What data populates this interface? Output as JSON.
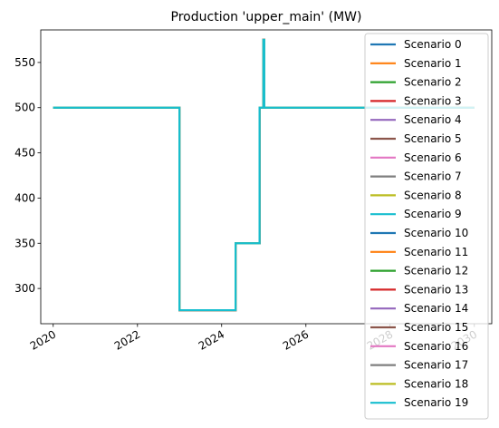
{
  "chart_data": {
    "type": "line",
    "title": "Production 'upper_main' (MW)",
    "xlabel": "",
    "ylabel": "",
    "x_axis_type": "date",
    "xlim": [
      "2019-09-15",
      "2030-06-01"
    ],
    "ylim": [
      261,
      586
    ],
    "x_ticks": [
      {
        "value": "2020-01-01",
        "label": "2020"
      },
      {
        "value": "2022-01-01",
        "label": "2022"
      },
      {
        "value": "2024-01-01",
        "label": "2024"
      },
      {
        "value": "2026-01-01",
        "label": "2026"
      },
      {
        "value": "2028-01-01",
        "label": "2028"
      },
      {
        "value": "2030-01-01",
        "label": "2030"
      }
    ],
    "y_ticks": [
      300,
      350,
      400,
      450,
      500,
      550
    ],
    "grid": false,
    "legend_position": "right",
    "step": "post",
    "colors": [
      "#1f77b4",
      "#ff7f0e",
      "#2ca02c",
      "#d62728",
      "#9467bd",
      "#8c564b",
      "#e377c2",
      "#7f7f7f",
      "#bcbd22",
      "#17becf"
    ],
    "shared_x": [
      "2019-12-31",
      "2022-12-31",
      "2024-05-01",
      "2024-11-25",
      "2024-12-28",
      "2025-01-05",
      "2030-01-01"
    ],
    "series": [
      {
        "name": "Scenario 0",
        "values": [
          500,
          276,
          350,
          500,
          575,
          500,
          500
        ]
      },
      {
        "name": "Scenario 1",
        "values": [
          500,
          276,
          350,
          500,
          575,
          500,
          500
        ]
      },
      {
        "name": "Scenario 2",
        "values": [
          500,
          276,
          350,
          500,
          575,
          500,
          500
        ]
      },
      {
        "name": "Scenario 3",
        "values": [
          500,
          276,
          350,
          500,
          575,
          500,
          500
        ]
      },
      {
        "name": "Scenario 4",
        "values": [
          500,
          276,
          350,
          500,
          575,
          500,
          500
        ]
      },
      {
        "name": "Scenario 5",
        "values": [
          500,
          276,
          350,
          500,
          575,
          500,
          500
        ]
      },
      {
        "name": "Scenario 6",
        "values": [
          500,
          276,
          350,
          500,
          575,
          500,
          500
        ]
      },
      {
        "name": "Scenario 7",
        "values": [
          500,
          276,
          350,
          500,
          575,
          500,
          500
        ]
      },
      {
        "name": "Scenario 8",
        "values": [
          500,
          276,
          350,
          500,
          575,
          500,
          500
        ]
      },
      {
        "name": "Scenario 9",
        "values": [
          500,
          276,
          350,
          500,
          575,
          500,
          500
        ]
      },
      {
        "name": "Scenario 10",
        "values": [
          500,
          276,
          350,
          500,
          575,
          500,
          500
        ]
      },
      {
        "name": "Scenario 11",
        "values": [
          500,
          276,
          350,
          500,
          575,
          500,
          500
        ]
      },
      {
        "name": "Scenario 12",
        "values": [
          500,
          276,
          350,
          500,
          575,
          500,
          500
        ]
      },
      {
        "name": "Scenario 13",
        "values": [
          500,
          276,
          350,
          500,
          575,
          500,
          500
        ]
      },
      {
        "name": "Scenario 14",
        "values": [
          500,
          276,
          350,
          500,
          575,
          500,
          500
        ]
      },
      {
        "name": "Scenario 15",
        "values": [
          500,
          276,
          350,
          500,
          575,
          500,
          500
        ]
      },
      {
        "name": "Scenario 16",
        "values": [
          500,
          276,
          350,
          500,
          575,
          500,
          500
        ]
      },
      {
        "name": "Scenario 17",
        "values": [
          500,
          276,
          350,
          500,
          575,
          500,
          500
        ]
      },
      {
        "name": "Scenario 18",
        "values": [
          500,
          276,
          350,
          500,
          575,
          500,
          500
        ]
      },
      {
        "name": "Scenario 19",
        "values": [
          500,
          276,
          350,
          500,
          575,
          500,
          500
        ]
      }
    ]
  }
}
